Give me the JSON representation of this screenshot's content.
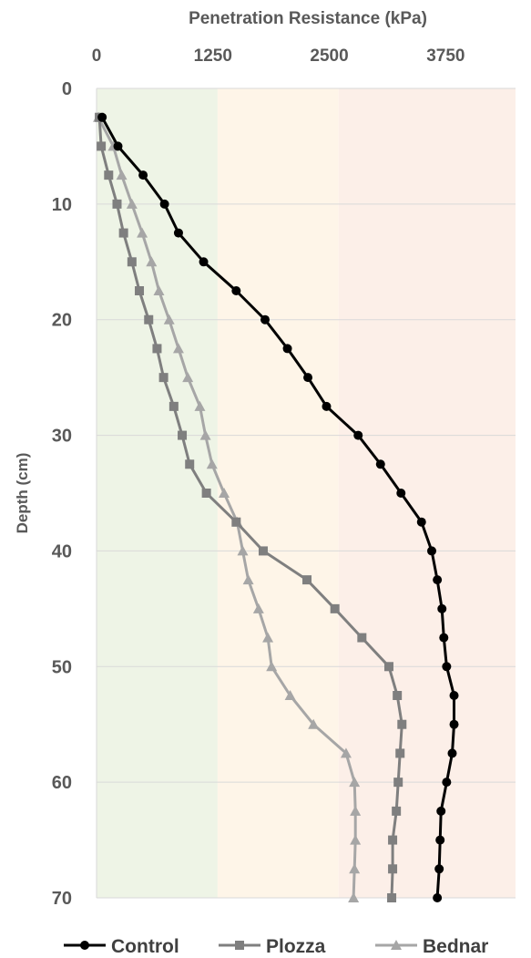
{
  "chart_data": {
    "type": "line",
    "xlabel": "Penetration Resistance (kPa)",
    "ylabel": "Depth (cm)",
    "xlim": [
      0,
      4500
    ],
    "ylim": [
      0,
      70
    ],
    "x_axis_position": "top",
    "y_axis_inverted": true,
    "x_ticks": [
      0,
      1250,
      2500,
      3750
    ],
    "x_tick_labels": [
      "0",
      "1250",
      "2500",
      "3750"
    ],
    "y_ticks": [
      0,
      10,
      20,
      30,
      40,
      50,
      60,
      70
    ],
    "y_tick_labels": [
      "0",
      "10",
      "20",
      "30",
      "40",
      "50",
      "60",
      "70"
    ],
    "grid": "horizontal",
    "legend_position": "bottom",
    "background_bands": [
      {
        "from": 0,
        "to": 1300,
        "color": "#eef4e6"
      },
      {
        "from": 1300,
        "to": 2600,
        "color": "#fef5e8"
      },
      {
        "from": 2600,
        "to": 4500,
        "color": "#fcefe8"
      }
    ],
    "series": [
      {
        "name": "Control",
        "color": "#000000",
        "marker": "circle",
        "points": [
          [
            60,
            2.5
          ],
          [
            230,
            5
          ],
          [
            500,
            7.5
          ],
          [
            730,
            10
          ],
          [
            880,
            12.5
          ],
          [
            1150,
            15
          ],
          [
            1500,
            17.5
          ],
          [
            1810,
            20
          ],
          [
            2050,
            22.5
          ],
          [
            2270,
            25
          ],
          [
            2470,
            27.5
          ],
          [
            2810,
            30
          ],
          [
            3050,
            32.5
          ],
          [
            3270,
            35
          ],
          [
            3490,
            37.5
          ],
          [
            3600,
            40
          ],
          [
            3660,
            42.5
          ],
          [
            3710,
            45
          ],
          [
            3730,
            47.5
          ],
          [
            3760,
            50
          ],
          [
            3840,
            52.5
          ],
          [
            3840,
            55
          ],
          [
            3820,
            57.5
          ],
          [
            3760,
            60
          ],
          [
            3700,
            62.5
          ],
          [
            3690,
            65
          ],
          [
            3680,
            67.5
          ],
          [
            3660,
            70
          ]
        ]
      },
      {
        "name": "Plozza",
        "color": "#7f7f7f",
        "marker": "square",
        "points": [
          [
            30,
            2.5
          ],
          [
            50,
            5
          ],
          [
            130,
            7.5
          ],
          [
            220,
            10
          ],
          [
            290,
            12.5
          ],
          [
            380,
            15
          ],
          [
            460,
            17.5
          ],
          [
            560,
            20
          ],
          [
            650,
            22.5
          ],
          [
            720,
            25
          ],
          [
            830,
            27.5
          ],
          [
            920,
            30
          ],
          [
            1000,
            32.5
          ],
          [
            1180,
            35
          ],
          [
            1500,
            37.5
          ],
          [
            1790,
            40
          ],
          [
            2260,
            42.5
          ],
          [
            2560,
            45
          ],
          [
            2850,
            47.5
          ],
          [
            3140,
            50
          ],
          [
            3230,
            52.5
          ],
          [
            3280,
            55
          ],
          [
            3260,
            57.5
          ],
          [
            3240,
            60
          ],
          [
            3220,
            62.5
          ],
          [
            3180,
            65
          ],
          [
            3180,
            67.5
          ],
          [
            3170,
            70
          ]
        ]
      },
      {
        "name": "Bednar",
        "color": "#a6a6a6",
        "marker": "triangle",
        "points": [
          [
            20,
            2.5
          ],
          [
            180,
            5
          ],
          [
            270,
            7.5
          ],
          [
            380,
            10
          ],
          [
            490,
            12.5
          ],
          [
            590,
            15
          ],
          [
            670,
            17.5
          ],
          [
            780,
            20
          ],
          [
            880,
            22.5
          ],
          [
            980,
            25
          ],
          [
            1110,
            27.5
          ],
          [
            1170,
            30
          ],
          [
            1240,
            32.5
          ],
          [
            1370,
            35
          ],
          [
            1510,
            37.5
          ],
          [
            1570,
            40
          ],
          [
            1630,
            42.5
          ],
          [
            1740,
            45
          ],
          [
            1840,
            47.5
          ],
          [
            1880,
            50
          ],
          [
            2080,
            52.5
          ],
          [
            2330,
            55
          ],
          [
            2680,
            57.5
          ],
          [
            2770,
            60
          ],
          [
            2780,
            62.5
          ],
          [
            2780,
            65
          ],
          [
            2770,
            67.5
          ],
          [
            2760,
            70
          ]
        ]
      }
    ]
  }
}
